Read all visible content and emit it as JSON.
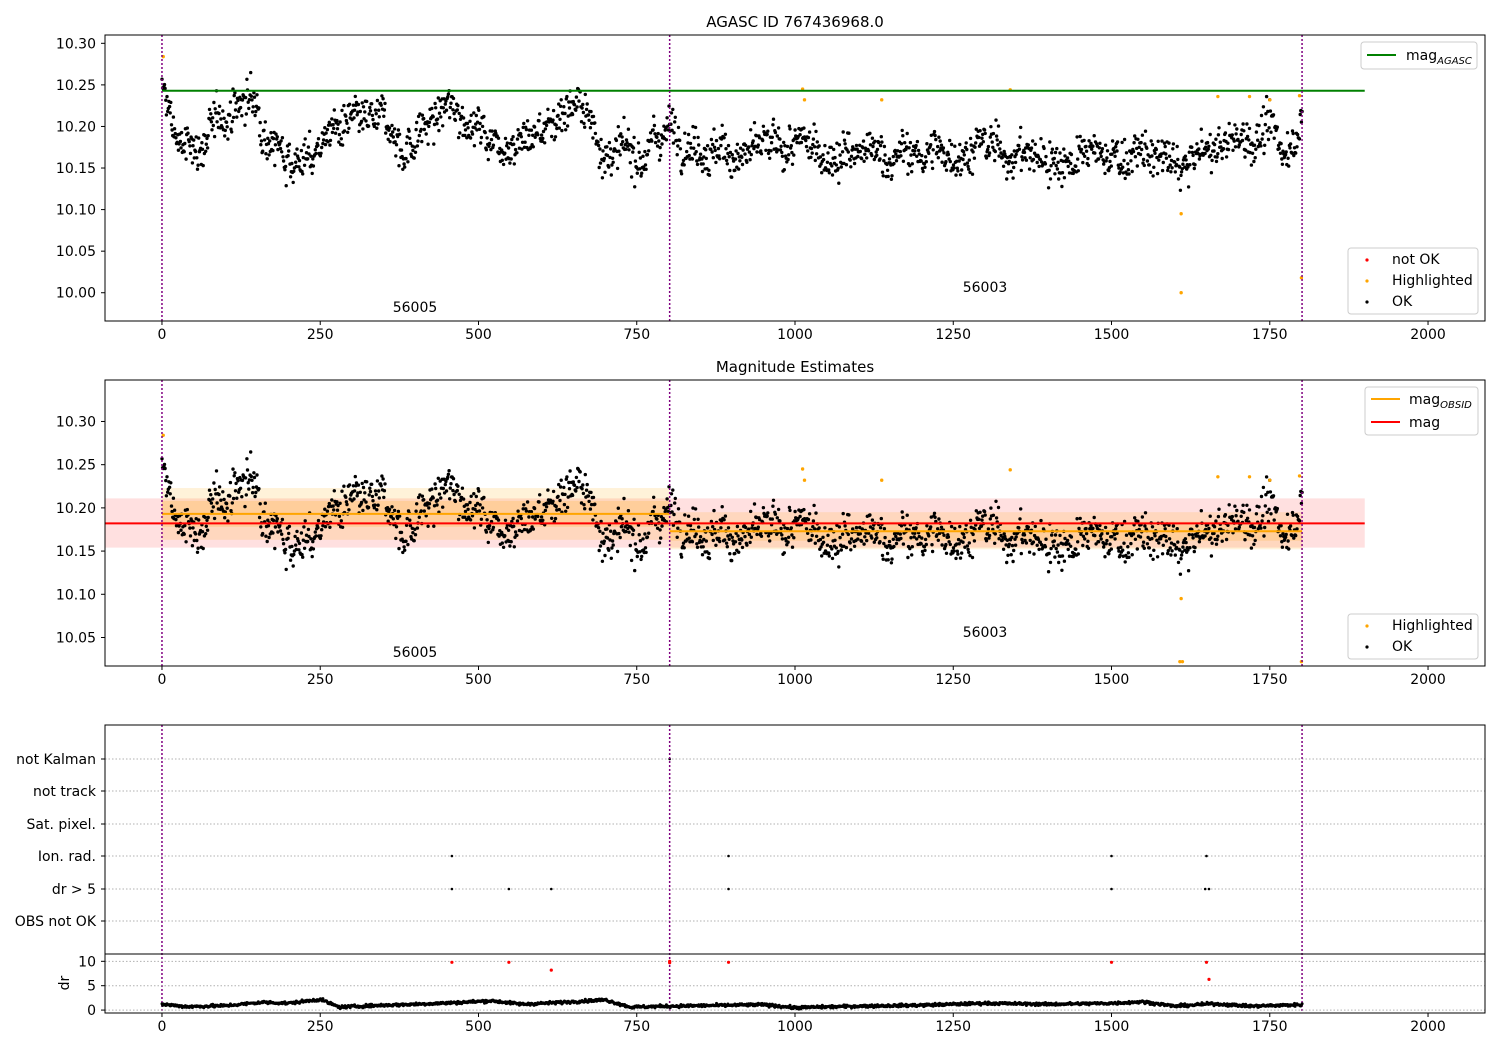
{
  "chart_data": [
    {
      "type": "scatter",
      "title": "AGASC ID 767436968.0",
      "xlim": [
        -90,
        2090
      ],
      "ylim": [
        9.966,
        10.31
      ],
      "x_ticks": [
        0,
        250,
        500,
        750,
        1000,
        1250,
        1500,
        1750,
        2000
      ],
      "y_ticks": [
        "10.00",
        "10.05",
        "10.10",
        "10.15",
        "10.20",
        "10.25",
        "10.30"
      ],
      "vlines": [
        0,
        802,
        1801
      ],
      "hlines": [
        {
          "name": "mag_AGASC",
          "y": 10.243,
          "x_range": [
            0,
            1900
          ],
          "color": "#008000"
        }
      ],
      "obsid_labels": [
        {
          "text": "56005",
          "x": 400,
          "y": 9.983
        },
        {
          "text": "56003",
          "x": 1300,
          "y": 10.007
        }
      ],
      "legend_lines": [
        "mag",
        "AGASC"
      ],
      "legend_points": [
        "not OK",
        "Highlighted",
        "OK"
      ],
      "series": [
        {
          "name": "OK",
          "color": "#000000",
          "n_points": 1800,
          "x_range": [
            0,
            1801
          ],
          "trend": [
            [
              0,
              10.245
            ],
            [
              15,
              10.205
            ],
            [
              30,
              10.175
            ],
            [
              60,
              10.175
            ],
            [
              100,
              10.215
            ],
            [
              140,
              10.235
            ],
            [
              170,
              10.19
            ],
            [
              200,
              10.165
            ],
            [
              240,
              10.16
            ],
            [
              260,
              10.195
            ],
            [
              320,
              10.2
            ],
            [
              360,
              10.205
            ],
            [
              380,
              10.17
            ],
            [
              410,
              10.195
            ],
            [
              450,
              10.22
            ],
            [
              480,
              10.215
            ],
            [
              520,
              10.185
            ],
            [
              570,
              10.185
            ],
            [
              610,
              10.2
            ],
            [
              650,
              10.235
            ],
            [
              680,
              10.2
            ],
            [
              710,
              10.16
            ],
            [
              760,
              10.17
            ],
            [
              800,
              10.2
            ],
            [
              850,
              10.18
            ],
            [
              900,
              10.165
            ],
            [
              1000,
              10.175
            ],
            [
              1100,
              10.165
            ],
            [
              1200,
              10.165
            ],
            [
              1300,
              10.175
            ],
            [
              1400,
              10.16
            ],
            [
              1500,
              10.165
            ],
            [
              1560,
              10.165
            ],
            [
              1610,
              10.15
            ],
            [
              1640,
              10.165
            ],
            [
              1700,
              10.185
            ],
            [
              1750,
              10.195
            ],
            [
              1770,
              10.17
            ],
            [
              1801,
              10.21
            ]
          ],
          "spread": 0.02
        },
        {
          "name": "Highlighted",
          "color": "#ffa500",
          "points": [
            [
              2,
              10.284
            ],
            [
              1012,
              10.245
            ],
            [
              1015,
              10.232
            ],
            [
              1137,
              10.232
            ],
            [
              1340,
              10.244
            ],
            [
              1610,
              10.095
            ],
            [
              1610,
              10.0
            ],
            [
              1668,
              10.236
            ],
            [
              1718,
              10.236
            ],
            [
              1750,
              10.232
            ],
            [
              1797,
              10.237
            ],
            [
              1800,
              10.018
            ]
          ]
        },
        {
          "name": "not OK",
          "color": "#ff0000",
          "points": []
        }
      ]
    },
    {
      "type": "scatter",
      "title": "Magnitude Estimates",
      "xlim": [
        -90,
        2090
      ],
      "ylim": [
        10.017,
        10.348
      ],
      "x_ticks": [
        0,
        250,
        500,
        750,
        1000,
        1250,
        1500,
        1750,
        2000
      ],
      "y_ticks": [
        "10.05",
        "10.10",
        "10.15",
        "10.20",
        "10.25",
        "10.30"
      ],
      "vlines": [
        0,
        802,
        1801
      ],
      "obsid_labels": [
        {
          "text": "56005",
          "x": 400,
          "y": 10.033
        },
        {
          "text": "56003",
          "x": 1300,
          "y": 10.057
        }
      ],
      "legend_lines": [
        {
          "label": "mag",
          "sub": "OBSID",
          "color": "#ffa500"
        },
        {
          "label": "mag",
          "sub": "",
          "color": "#ff0000"
        }
      ],
      "legend_points": [
        "Highlighted",
        "OK"
      ],
      "mag_obsid_segments": [
        {
          "x": [
            0,
            802
          ],
          "y": 10.193,
          "band": [
            10.163,
            10.223
          ],
          "inner": [
            10.178,
            10.208
          ]
        },
        {
          "x": [
            802,
            1801
          ],
          "y": 10.173,
          "band": [
            10.152,
            10.195
          ],
          "inner": [
            10.162,
            10.184
          ]
        }
      ],
      "mag": {
        "y": 10.182,
        "x_range": [
          -90,
          1900
        ],
        "band": [
          10.154,
          10.211
        ]
      },
      "highlighted_points": [
        [
          2,
          10.284
        ],
        [
          1012,
          10.245
        ],
        [
          1015,
          10.232
        ],
        [
          1137,
          10.232
        ],
        [
          1340,
          10.244
        ],
        [
          1610,
          10.095
        ],
        [
          1608,
          10.022
        ],
        [
          1612,
          10.022
        ],
        [
          1668,
          10.236
        ],
        [
          1718,
          10.236
        ],
        [
          1750,
          10.232
        ],
        [
          1797,
          10.237
        ],
        [
          1800,
          10.022
        ]
      ]
    },
    {
      "type": "scatter",
      "title": "",
      "xlim": [
        -90,
        2090
      ],
      "x_ticks": [
        0,
        250,
        500,
        750,
        1000,
        1250,
        1500,
        1750,
        2000
      ],
      "flag_labels": [
        "not Kalman",
        "not track",
        "Sat. pixel.",
        "Ion. rad.",
        "dr > 5",
        "OBS not OK"
      ],
      "flag_points": {
        "not Kalman": [
          802
        ],
        "not track": [],
        "Sat. pixel.": [],
        "Ion. rad.": [
          458,
          895,
          1500,
          1650
        ],
        "dr > 5": [
          458,
          548,
          615,
          895,
          1500,
          1648,
          1654
        ],
        "OBS not OK": []
      },
      "dr": {
        "ylabel": "dr",
        "ylim": [
          -0.6,
          11.5
        ],
        "y_ticks": [
          "0",
          "5",
          "10"
        ],
        "red_points": [
          [
            458,
            9.8
          ],
          [
            548,
            9.8
          ],
          [
            615,
            8.2
          ],
          [
            802,
            9.7
          ],
          [
            802,
            10.0
          ],
          [
            895,
            9.8
          ],
          [
            1500,
            9.8
          ],
          [
            1650,
            9.8
          ],
          [
            1654,
            6.3
          ]
        ],
        "trend": [
          [
            0,
            1.2
          ],
          [
            40,
            0.7
          ],
          [
            100,
            0.9
          ],
          [
            160,
            1.6
          ],
          [
            200,
            1.4
          ],
          [
            250,
            2.2
          ],
          [
            280,
            0.6
          ],
          [
            330,
            0.9
          ],
          [
            400,
            1.2
          ],
          [
            460,
            1.5
          ],
          [
            520,
            1.9
          ],
          [
            570,
            1.2
          ],
          [
            620,
            1.5
          ],
          [
            700,
            2.1
          ],
          [
            740,
            0.6
          ],
          [
            800,
            0.8
          ],
          [
            850,
            0.9
          ],
          [
            950,
            1.1
          ],
          [
            1000,
            0.5
          ],
          [
            1100,
            0.8
          ],
          [
            1200,
            1.0
          ],
          [
            1300,
            1.4
          ],
          [
            1400,
            1.2
          ],
          [
            1500,
            1.4
          ],
          [
            1550,
            1.7
          ],
          [
            1600,
            0.8
          ],
          [
            1660,
            1.3
          ],
          [
            1720,
            0.8
          ],
          [
            1801,
            1.1
          ]
        ]
      }
    }
  ]
}
